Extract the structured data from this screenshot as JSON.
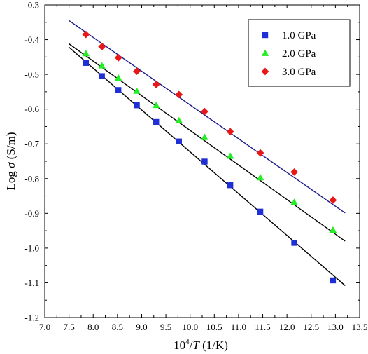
{
  "chart_data": {
    "type": "scatter",
    "xlabel": {
      "prefix": "10",
      "sup": "4",
      "slash": "/",
      "var": "T",
      "unit": " (1/K)"
    },
    "ylabel": {
      "prefix": "Log ",
      "var": "σ",
      "unit": "  (S/m)"
    },
    "xlim": [
      7.0,
      13.5
    ],
    "ylim": [
      -1.2,
      -0.3
    ],
    "xticks": [
      "7.0",
      "7.5",
      "8.0",
      "8.5",
      "9.0",
      "9.5",
      "10.0",
      "10.5",
      "11.0",
      "11.5",
      "12.0",
      "12.5",
      "13.0",
      "13.5"
    ],
    "yticks": [
      "-0.3",
      "-0.4",
      "-0.5",
      "-0.6",
      "-0.7",
      "-0.8",
      "-0.9",
      "-1.0",
      "-1.1",
      "-1.2"
    ],
    "grid": false,
    "legend_position": "top-right",
    "series": [
      {
        "name": "1.0 GPa",
        "marker": "square",
        "color": "#1f2fd6",
        "x": [
          7.85,
          8.18,
          8.52,
          8.9,
          9.3,
          9.77,
          10.3,
          10.83,
          11.45,
          12.15,
          12.95
        ],
        "y": [
          -0.467,
          -0.505,
          -0.545,
          -0.589,
          -0.637,
          -0.693,
          -0.751,
          -0.819,
          -0.895,
          -0.985,
          -1.093
        ],
        "fit": {
          "x": [
            7.5,
            13.2
          ],
          "y": [
            -0.422,
            -1.108
          ],
          "color": "#000000"
        }
      },
      {
        "name": "2.0 GPa",
        "marker": "triangle",
        "color": "#22ee22",
        "x": [
          7.85,
          8.18,
          8.52,
          8.9,
          9.3,
          9.77,
          10.3,
          10.83,
          11.45,
          12.15,
          12.95
        ],
        "y": [
          -0.44,
          -0.475,
          -0.51,
          -0.548,
          -0.589,
          -0.633,
          -0.681,
          -0.735,
          -0.797,
          -0.868,
          -0.948
        ],
        "fit": {
          "x": [
            7.5,
            13.2
          ],
          "y": [
            -0.412,
            -0.98
          ],
          "color": "#000000"
        }
      },
      {
        "name": "3.0 GPa",
        "marker": "diamond",
        "color": "#e81818",
        "x": [
          7.85,
          8.18,
          8.52,
          8.9,
          9.3,
          9.77,
          10.3,
          10.83,
          11.45,
          12.15,
          12.95
        ],
        "y": [
          -0.385,
          -0.42,
          -0.452,
          -0.491,
          -0.529,
          -0.558,
          -0.607,
          -0.665,
          -0.726,
          -0.781,
          -0.862
        ],
        "fit": {
          "x": [
            7.5,
            13.2
          ],
          "y": [
            -0.345,
            -0.899
          ],
          "color": "#1a1a8c"
        }
      }
    ]
  }
}
